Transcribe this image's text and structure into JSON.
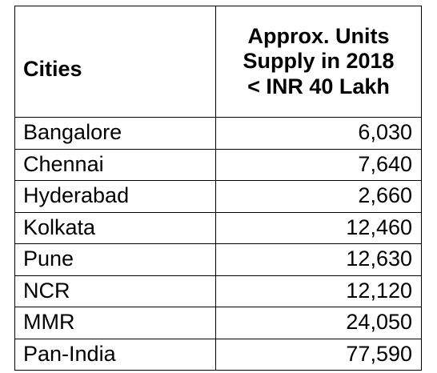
{
  "chart_data": {
    "type": "table",
    "columns": [
      "Cities",
      [
        "Approx. Units",
        "Supply in 2018",
        "< INR 40 Lakh"
      ]
    ],
    "rows": [
      {
        "city": "Bangalore",
        "units": "6,030"
      },
      {
        "city": "Chennai",
        "units": "7,640"
      },
      {
        "city": "Hyderabad",
        "units": "2,660"
      },
      {
        "city": "Kolkata",
        "units": "12,460"
      },
      {
        "city": "Pune",
        "units": "12,630"
      },
      {
        "city": "NCR",
        "units": "12,120"
      },
      {
        "city": "MMR",
        "units": "24,050"
      },
      {
        "city": "Pan-India",
        "units": "77,590"
      }
    ]
  }
}
